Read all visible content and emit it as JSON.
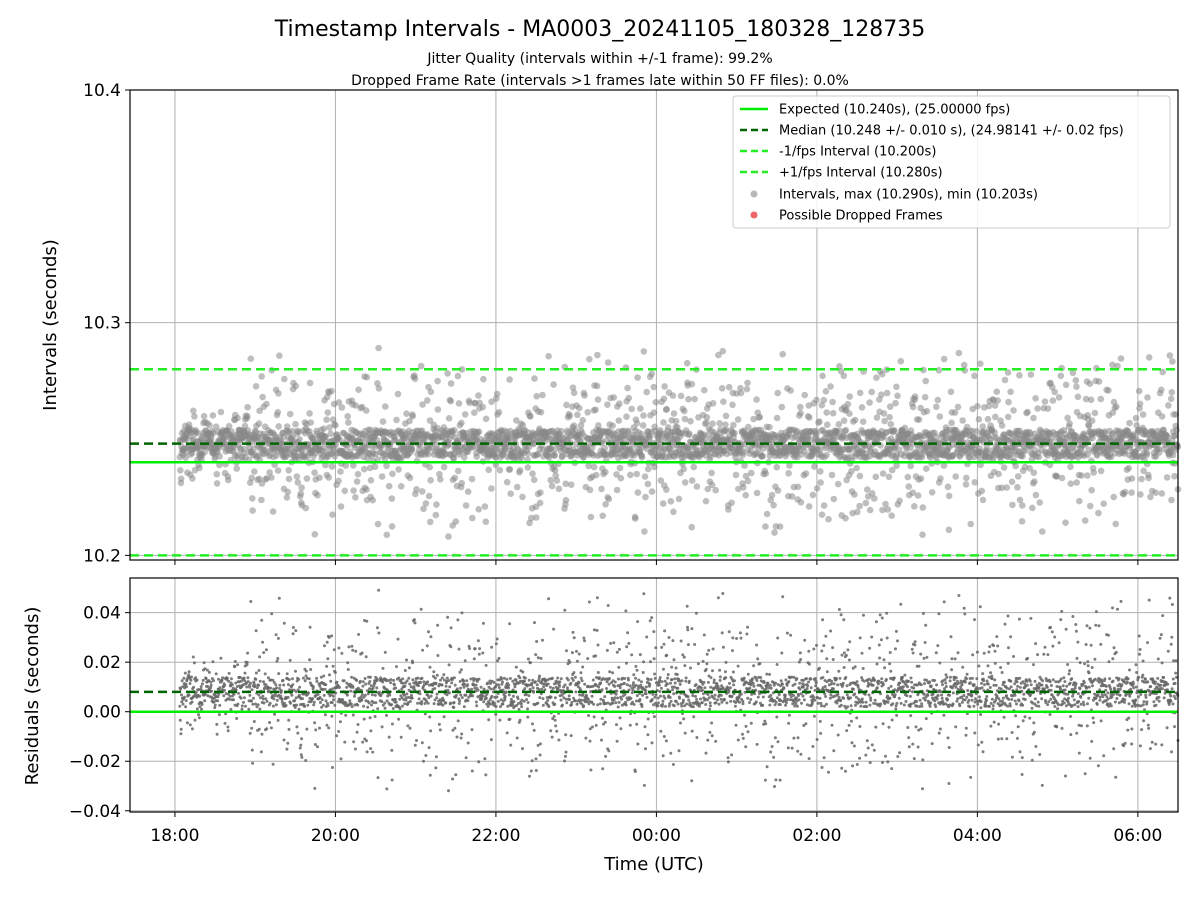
{
  "chart_data": {
    "type": "scatter",
    "title": "Timestamp Intervals - MA0003_20241105_180328_128735",
    "subtitles": [
      "Jitter Quality (intervals within +/-1 frame): 99.2%",
      "Dropped Frame Rate (intervals >1 frames late within 50 FF files): 0.0%"
    ],
    "xlabel": "Time (UTC)",
    "x_range_hours": [
      17.44,
      30.5
    ],
    "x_ticks": [
      {
        "hour": 18,
        "label": "18:00"
      },
      {
        "hour": 20,
        "label": "20:00"
      },
      {
        "hour": 22,
        "label": "22:00"
      },
      {
        "hour": 24,
        "label": "00:00"
      },
      {
        "hour": 26,
        "label": "02:00"
      },
      {
        "hour": 28,
        "label": "04:00"
      },
      {
        "hour": 30,
        "label": "06:00"
      }
    ],
    "data_x_range_hours": [
      18.06,
      30.5
    ],
    "grid": true,
    "top_panel": {
      "ylabel": "Intervals (seconds)",
      "ylim": [
        10.198,
        10.4
      ],
      "y_ticks": [
        {
          "value": 10.2,
          "label": "10.2"
        },
        {
          "value": 10.3,
          "label": "10.3"
        },
        {
          "value": 10.4,
          "label": "10.4"
        }
      ],
      "lines": [
        {
          "name": "Expected (10.240s), (25.00000 fps)",
          "value": 10.24,
          "color": "#00ee00",
          "dashed": false
        },
        {
          "name": "Median (10.248 +/- 0.010 s), (24.98141 +/- 0.02 fps)",
          "value": 10.248,
          "color": "#006400",
          "dashed": true
        },
        {
          "name": "-1/fps Interval (10.200s)",
          "value": 10.2,
          "color": "#22ee22",
          "dashed": true
        },
        {
          "name": "+1/fps Interval (10.280s)",
          "value": 10.28,
          "color": "#22ee22",
          "dashed": true
        }
      ],
      "scatter": [
        {
          "name": "Intervals, max (10.290s), min (10.203s)",
          "color": "#888888"
        },
        {
          "name": "Possible Dropped Frames",
          "color": "#ee6666"
        }
      ],
      "legend_position": "top-right"
    },
    "bottom_panel": {
      "ylabel": "Residuals (seconds)",
      "ylim": [
        -0.0405,
        0.054
      ],
      "y_ticks": [
        {
          "value": 0.04,
          "label": "0.04"
        },
        {
          "value": 0.02,
          "label": "0.02"
        },
        {
          "value": 0.0,
          "label": "0.00"
        },
        {
          "value": -0.02,
          "label": "−0.02"
        },
        {
          "value": -0.04,
          "label": "−0.04"
        }
      ],
      "lines": [
        {
          "value": 0.0,
          "color": "#00ee00",
          "dashed": false
        },
        {
          "value": 0.008,
          "color": "#006400",
          "dashed": true
        }
      ]
    },
    "interval_distribution": {
      "expected": 10.24,
      "median": 10.248,
      "max": 10.29,
      "min": 10.203
    }
  }
}
